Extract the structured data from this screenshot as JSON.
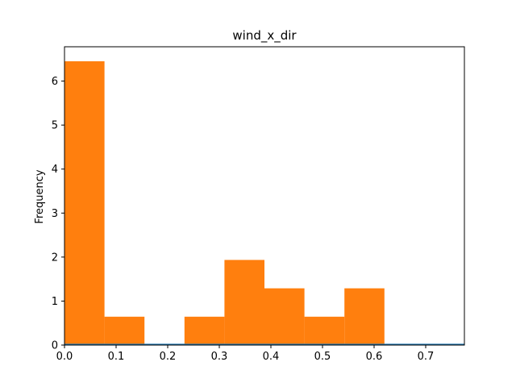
{
  "chart_data": {
    "type": "bar",
    "title": "wind_x_dir",
    "xlabel": "",
    "ylabel": "Frequency",
    "xlim": [
      0,
      0.775
    ],
    "ylim": [
      0,
      6.78
    ],
    "xticks": [
      0.0,
      0.1,
      0.2,
      0.3,
      0.4,
      0.5,
      0.6,
      0.7
    ],
    "xtick_labels": [
      "0.0",
      "0.1",
      "0.2",
      "0.3",
      "0.4",
      "0.5",
      "0.6",
      "0.7"
    ],
    "yticks": [
      0,
      1,
      2,
      3,
      4,
      5,
      6
    ],
    "ytick_labels": [
      "0",
      "1",
      "2",
      "3",
      "4",
      "5",
      "6"
    ],
    "grid": false,
    "series": [
      {
        "color": "#ff7f0e",
        "bins": [
          {
            "x0": 0.0,
            "x1": 0.0775,
            "value": 6.45
          },
          {
            "x0": 0.0775,
            "x1": 0.155,
            "value": 0.645
          },
          {
            "x0": 0.155,
            "x1": 0.2325,
            "value": 0
          },
          {
            "x0": 0.2325,
            "x1": 0.31,
            "value": 0.645
          },
          {
            "x0": 0.31,
            "x1": 0.3875,
            "value": 1.935
          },
          {
            "x0": 0.3875,
            "x1": 0.465,
            "value": 1.29
          },
          {
            "x0": 0.465,
            "x1": 0.5425,
            "value": 0.645
          },
          {
            "x0": 0.5425,
            "x1": 0.62,
            "value": 1.29
          },
          {
            "x0": 0.62,
            "x1": 0.6975,
            "value": 0
          },
          {
            "x0": 0.6975,
            "x1": 0.775,
            "value": 0
          }
        ]
      },
      {
        "color": "#1f77b4",
        "bins": [
          {
            "x0": 0.0,
            "x1": 0.775,
            "value": 0.03
          }
        ]
      }
    ]
  }
}
